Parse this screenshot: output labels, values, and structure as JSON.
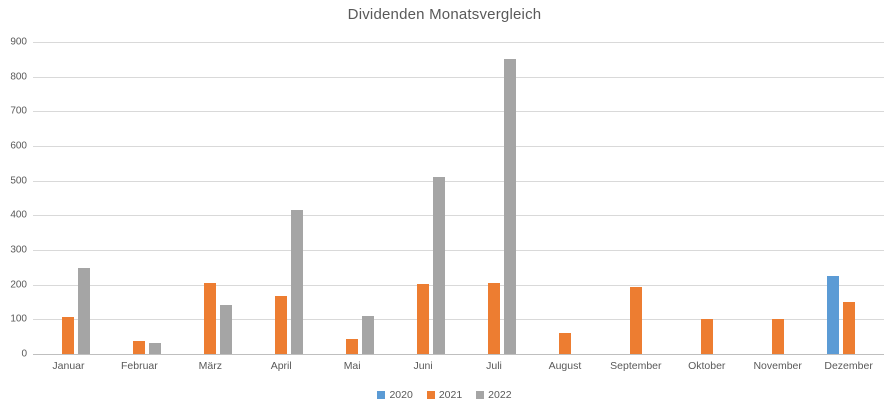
{
  "chart_data": {
    "type": "bar",
    "title": "Dividenden Monatsvergleich",
    "categories": [
      "Januar",
      "Februar",
      "März",
      "April",
      "Mai",
      "Juni",
      "Juli",
      "August",
      "September",
      "Oktober",
      "November",
      "Dezember"
    ],
    "series": [
      {
        "name": "2020",
        "color": "#5B9BD5",
        "values": [
          0,
          0,
          0,
          0,
          0,
          0,
          0,
          0,
          0,
          0,
          0,
          225
        ]
      },
      {
        "name": "2021",
        "color": "#ED7D31",
        "values": [
          108,
          38,
          205,
          167,
          43,
          202,
          205,
          60,
          194,
          102,
          102,
          150
        ]
      },
      {
        "name": "2022",
        "color": "#A5A5A5",
        "values": [
          247,
          33,
          141,
          415,
          110,
          512,
          850,
          0,
          0,
          0,
          0,
          0
        ]
      }
    ],
    "xlabel": "",
    "ylabel": "",
    "ylim": [
      0,
      900
    ],
    "ytick_step": 100,
    "yticks": [
      0,
      100,
      200,
      300,
      400,
      500,
      600,
      700,
      800,
      900
    ],
    "grid": true,
    "legend_position": "bottom",
    "colors": {
      "gridline": "#D9D9D9",
      "axis_line": "#BFBFBF",
      "title_text": "#595959",
      "tick_text": "#595959",
      "background": "#FFFFFF"
    }
  }
}
